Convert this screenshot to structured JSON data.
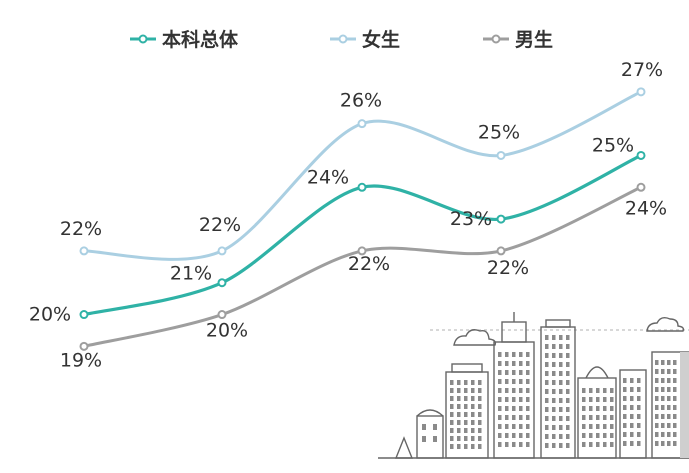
{
  "chart_data": {
    "type": "line",
    "categories": [
      "",
      "",
      "",
      "",
      "",
      ""
    ],
    "series": [
      {
        "name": "本科总体",
        "color": "#2fb2a6",
        "values": [
          20,
          21,
          24,
          23,
          25,
          null
        ],
        "labels": [
          "20%",
          "21%",
          "24%",
          "23%",
          "25%",
          ""
        ]
      },
      {
        "name": "女生",
        "color": "#aacfe2",
        "values": [
          22,
          22,
          26,
          25,
          27,
          null
        ],
        "labels": [
          "22%",
          "22%",
          "26%",
          "25%",
          "27%",
          ""
        ]
      },
      {
        "name": "男生",
        "color": "#9e9e9e",
        "values": [
          19,
          20,
          22,
          22,
          24,
          null
        ],
        "labels": [
          "19%",
          "20%",
          "22%",
          "22%",
          "24%",
          ""
        ]
      }
    ],
    "title": "",
    "xlabel": "",
    "ylabel": "",
    "ylim": [
      17,
      28
    ],
    "grid": false,
    "legend": "top"
  }
}
